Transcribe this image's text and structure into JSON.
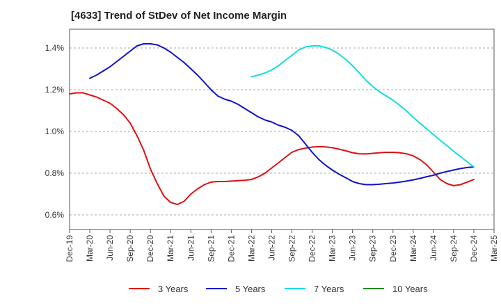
{
  "title": "[4633]  Trend of StDev of Net Income Margin",
  "chart_data": {
    "type": "line",
    "title": "[4633]  Trend of StDev of Net Income Margin",
    "xlabel": "",
    "ylabel": "",
    "x_ticks": [
      "Dec-19",
      "Mar-20",
      "Jun-20",
      "Sep-20",
      "Dec-20",
      "Mar-21",
      "Jun-21",
      "Sep-21",
      "Dec-21",
      "Mar-22",
      "Jun-22",
      "Sep-22",
      "Dec-22",
      "Mar-23",
      "Jun-23",
      "Sep-23",
      "Dec-23",
      "Mar-24",
      "Jun-24",
      "Sep-24",
      "Dec-24",
      "Mar-25"
    ],
    "y_ticks": [
      "0.6%",
      "0.8%",
      "1.0%",
      "1.2%",
      "1.4%"
    ],
    "y_tick_values": [
      0.6,
      0.8,
      1.0,
      1.2,
      1.4
    ],
    "ylim": [
      0.53,
      1.49
    ],
    "grid": "horizontal dashed",
    "legend_position": "bottom",
    "series": [
      {
        "name": "3 Years",
        "color": "#dd1111",
        "points": [
          [
            "Dec-19",
            1.18
          ],
          [
            "Jan-20",
            1.185
          ],
          [
            "Feb-20",
            1.185
          ],
          [
            "Mar-20",
            1.175
          ],
          [
            "Apr-20",
            1.165
          ],
          [
            "May-20",
            1.15
          ],
          [
            "Jun-20",
            1.135
          ],
          [
            "Jul-20",
            1.11
          ],
          [
            "Aug-20",
            1.08
          ],
          [
            "Sep-20",
            1.04
          ],
          [
            "Oct-20",
            0.98
          ],
          [
            "Nov-20",
            0.91
          ],
          [
            "Dec-20",
            0.82
          ],
          [
            "Jan-21",
            0.75
          ],
          [
            "Feb-21",
            0.69
          ],
          [
            "Mar-21",
            0.66
          ],
          [
            "Apr-21",
            0.65
          ],
          [
            "May-21",
            0.665
          ],
          [
            "Jun-21",
            0.7
          ],
          [
            "Jul-21",
            0.725
          ],
          [
            "Aug-21",
            0.745
          ],
          [
            "Sep-21",
            0.757
          ],
          [
            "Oct-21",
            0.76
          ],
          [
            "Nov-21",
            0.76
          ],
          [
            "Dec-21",
            0.762
          ],
          [
            "Jan-22",
            0.764
          ],
          [
            "Feb-22",
            0.766
          ],
          [
            "Mar-22",
            0.77
          ],
          [
            "Apr-22",
            0.782
          ],
          [
            "May-22",
            0.8
          ],
          [
            "Jun-22",
            0.825
          ],
          [
            "Jul-22",
            0.85
          ],
          [
            "Aug-22",
            0.875
          ],
          [
            "Sep-22",
            0.9
          ],
          [
            "Oct-22",
            0.913
          ],
          [
            "Nov-22",
            0.92
          ],
          [
            "Dec-22",
            0.925
          ],
          [
            "Jan-23",
            0.927
          ],
          [
            "Feb-23",
            0.926
          ],
          [
            "Mar-23",
            0.922
          ],
          [
            "Apr-23",
            0.915
          ],
          [
            "May-23",
            0.907
          ],
          [
            "Jun-23",
            0.898
          ],
          [
            "Jul-23",
            0.893
          ],
          [
            "Aug-23",
            0.892
          ],
          [
            "Sep-23",
            0.895
          ],
          [
            "Oct-23",
            0.898
          ],
          [
            "Nov-23",
            0.9
          ],
          [
            "Dec-23",
            0.9
          ],
          [
            "Jan-24",
            0.898
          ],
          [
            "Feb-24",
            0.893
          ],
          [
            "Mar-24",
            0.883
          ],
          [
            "Apr-24",
            0.865
          ],
          [
            "May-24",
            0.84
          ],
          [
            "Jun-24",
            0.805
          ],
          [
            "Jul-24",
            0.77
          ],
          [
            "Aug-24",
            0.75
          ],
          [
            "Sep-24",
            0.74
          ],
          [
            "Oct-24",
            0.745
          ],
          [
            "Nov-24",
            0.757
          ],
          [
            "Dec-24",
            0.77
          ]
        ]
      },
      {
        "name": "5 Years",
        "color": "#1111cc",
        "points": [
          [
            "Mar-20",
            1.255
          ],
          [
            "Apr-20",
            1.27
          ],
          [
            "May-20",
            1.29
          ],
          [
            "Jun-20",
            1.31
          ],
          [
            "Jul-20",
            1.335
          ],
          [
            "Aug-20",
            1.36
          ],
          [
            "Sep-20",
            1.385
          ],
          [
            "Oct-20",
            1.41
          ],
          [
            "Nov-20",
            1.42
          ],
          [
            "Dec-20",
            1.42
          ],
          [
            "Jan-21",
            1.415
          ],
          [
            "Feb-21",
            1.4
          ],
          [
            "Mar-21",
            1.38
          ],
          [
            "Apr-21",
            1.355
          ],
          [
            "May-21",
            1.33
          ],
          [
            "Jun-21",
            1.3
          ],
          [
            "Jul-21",
            1.27
          ],
          [
            "Aug-21",
            1.235
          ],
          [
            "Sep-21",
            1.2
          ],
          [
            "Oct-21",
            1.17
          ],
          [
            "Nov-21",
            1.155
          ],
          [
            "Dec-21",
            1.145
          ],
          [
            "Jan-22",
            1.13
          ],
          [
            "Feb-22",
            1.11
          ],
          [
            "Mar-22",
            1.09
          ],
          [
            "Apr-22",
            1.07
          ],
          [
            "May-22",
            1.055
          ],
          [
            "Jun-22",
            1.045
          ],
          [
            "Jul-22",
            1.03
          ],
          [
            "Aug-22",
            1.02
          ],
          [
            "Sep-22",
            1.005
          ],
          [
            "Oct-22",
            0.98
          ],
          [
            "Nov-22",
            0.94
          ],
          [
            "Dec-22",
            0.9
          ],
          [
            "Jan-23",
            0.865
          ],
          [
            "Feb-23",
            0.838
          ],
          [
            "Mar-23",
            0.815
          ],
          [
            "Apr-23",
            0.795
          ],
          [
            "May-23",
            0.778
          ],
          [
            "Jun-23",
            0.76
          ],
          [
            "Jul-23",
            0.75
          ],
          [
            "Aug-23",
            0.745
          ],
          [
            "Sep-23",
            0.745
          ],
          [
            "Oct-23",
            0.747
          ],
          [
            "Nov-23",
            0.75
          ],
          [
            "Dec-23",
            0.753
          ],
          [
            "Jan-24",
            0.757
          ],
          [
            "Feb-24",
            0.762
          ],
          [
            "Mar-24",
            0.768
          ],
          [
            "Apr-24",
            0.775
          ],
          [
            "May-24",
            0.783
          ],
          [
            "Jun-24",
            0.79
          ],
          [
            "Jul-24",
            0.8
          ],
          [
            "Aug-24",
            0.808
          ],
          [
            "Sep-24",
            0.815
          ],
          [
            "Oct-24",
            0.822
          ],
          [
            "Nov-24",
            0.827
          ],
          [
            "Dec-24",
            0.83
          ]
        ]
      },
      {
        "name": "7 Years",
        "color": "#11dddd",
        "points": [
          [
            "Mar-22",
            1.262
          ],
          [
            "Apr-22",
            1.27
          ],
          [
            "May-22",
            1.28
          ],
          [
            "Jun-22",
            1.295
          ],
          [
            "Jul-22",
            1.315
          ],
          [
            "Aug-22",
            1.34
          ],
          [
            "Sep-22",
            1.365
          ],
          [
            "Oct-22",
            1.39
          ],
          [
            "Nov-22",
            1.405
          ],
          [
            "Dec-22",
            1.41
          ],
          [
            "Jan-23",
            1.41
          ],
          [
            "Feb-23",
            1.403
          ],
          [
            "Mar-23",
            1.39
          ],
          [
            "Apr-23",
            1.37
          ],
          [
            "May-23",
            1.345
          ],
          [
            "Jun-23",
            1.315
          ],
          [
            "Jul-23",
            1.28
          ],
          [
            "Aug-23",
            1.245
          ],
          [
            "Sep-23",
            1.215
          ],
          [
            "Oct-23",
            1.19
          ],
          [
            "Nov-23",
            1.17
          ],
          [
            "Dec-23",
            1.15
          ],
          [
            "Jan-24",
            1.125
          ],
          [
            "Feb-24",
            1.098
          ],
          [
            "Mar-24",
            1.068
          ],
          [
            "Apr-24",
            1.04
          ],
          [
            "May-24",
            1.012
          ],
          [
            "Jun-24",
            0.985
          ],
          [
            "Jul-24",
            0.958
          ],
          [
            "Aug-24",
            0.932
          ],
          [
            "Sep-24",
            0.905
          ],
          [
            "Oct-24",
            0.88
          ],
          [
            "Nov-24",
            0.855
          ],
          [
            "Dec-24",
            0.83
          ]
        ]
      },
      {
        "name": "10 Years",
        "color": "#228822",
        "points": []
      }
    ]
  }
}
